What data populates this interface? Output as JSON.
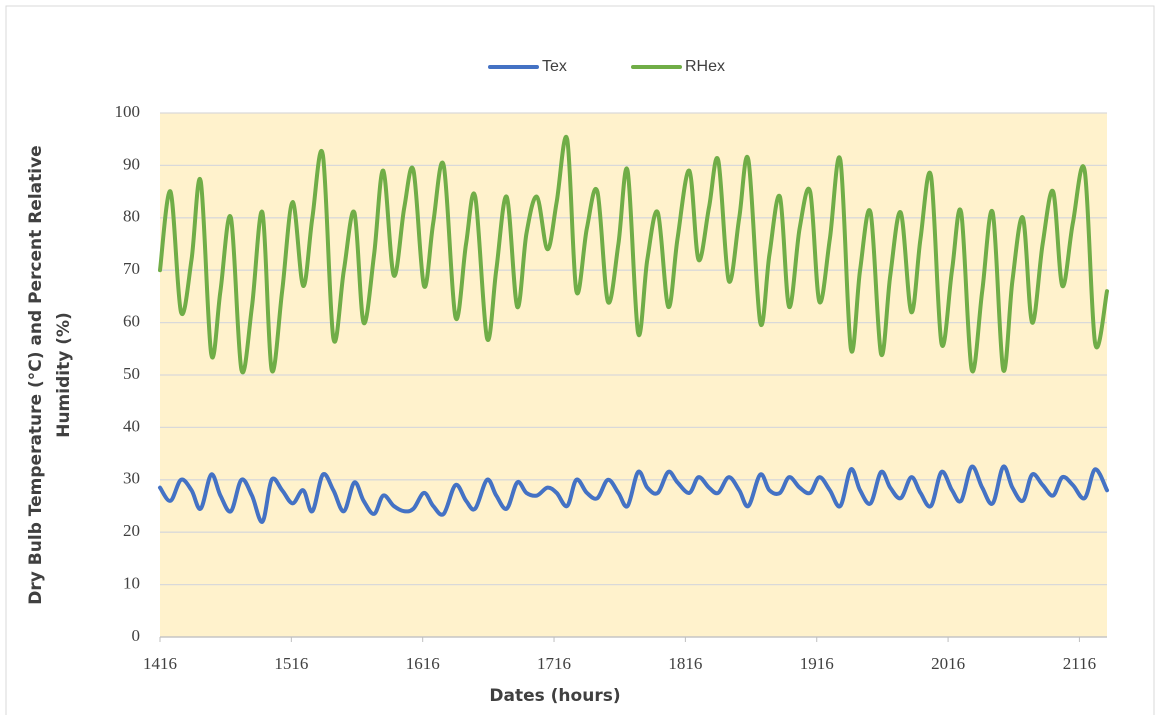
{
  "chart_data": {
    "type": "line",
    "xlabel": "Dates (hours)",
    "ylabel": [
      "Dry Bulb Temperature (°C) and Percent Relative",
      "Humidity (%)"
    ],
    "x": [
      1416,
      1424,
      1432,
      1440,
      1447,
      1455,
      1462,
      1470,
      1478,
      1486,
      1494,
      1501,
      1509,
      1517,
      1525,
      1532,
      1540,
      1548,
      1556,
      1564,
      1571,
      1579,
      1586,
      1594,
      1602,
      1609,
      1617,
      1624,
      1632,
      1641,
      1649,
      1656,
      1665,
      1672,
      1680,
      1688,
      1695,
      1703,
      1711,
      1718,
      1726,
      1733,
      1741,
      1749,
      1757,
      1765,
      1772,
      1780,
      1787,
      1795,
      1803,
      1810,
      1819,
      1826,
      1834,
      1841,
      1849,
      1857,
      1864,
      1873,
      1880,
      1888,
      1895,
      1903,
      1911,
      1918,
      1926,
      1934,
      1942,
      1949,
      1957,
      1965,
      1972,
      1980,
      1988,
      1995,
      2003,
      2011,
      2019,
      2026,
      2034,
      2042,
      2050,
      2058,
      2065,
      2073,
      2080,
      2088,
      2096,
      2103,
      2111,
      2120,
      2128,
      2137
    ],
    "series": [
      {
        "name": "Tex",
        "color": "#4472c4",
        "values": [
          28.5,
          26,
          30,
          28,
          24.5,
          31,
          27,
          24,
          30,
          27,
          22,
          30,
          28,
          25.5,
          28,
          24,
          31,
          28,
          24,
          29.5,
          26,
          23.5,
          27,
          25,
          24,
          24.5,
          27.5,
          25,
          23.5,
          29,
          26,
          24.5,
          30,
          27,
          24.5,
          29.5,
          27.5,
          27,
          28.5,
          27.5,
          25,
          30,
          27.5,
          26.5,
          30,
          27.5,
          25,
          31.5,
          28.5,
          27.5,
          31.5,
          29.5,
          27.5,
          30.5,
          28.5,
          27.5,
          30.5,
          28,
          25,
          31,
          28,
          27.5,
          30.5,
          28.5,
          27.5,
          30.5,
          28,
          25,
          32,
          28,
          25.5,
          31.5,
          28.5,
          26.5,
          30.5,
          27.5,
          25,
          31.5,
          28,
          26,
          32.5,
          28.5,
          25.5,
          32.5,
          28.5,
          26,
          31,
          29,
          27,
          30.5,
          29,
          26.5,
          32,
          28
        ]
      },
      {
        "name": "RHex",
        "color": "#70ad47",
        "values": [
          70,
          85,
          62,
          72,
          87,
          54,
          66,
          80,
          51,
          63,
          81,
          51,
          66,
          83,
          67,
          80,
          92,
          57,
          70,
          81,
          60,
          73,
          89,
          69,
          82,
          89,
          67,
          79,
          90,
          61,
          75,
          84,
          57,
          70,
          84,
          63,
          77,
          84,
          74,
          83,
          95,
          66,
          78,
          85,
          64,
          75,
          89,
          58,
          72,
          81,
          63,
          76,
          89,
          72,
          82,
          91,
          68,
          80,
          91,
          60,
          73,
          84,
          63,
          78,
          85,
          64,
          76,
          91,
          55,
          70,
          81,
          54,
          69,
          81,
          62,
          76,
          88,
          56,
          70,
          81,
          51,
          66,
          81,
          51,
          68,
          80,
          60,
          75,
          85,
          67,
          79,
          89,
          56,
          66
        ]
      }
    ],
    "xlim": [
      1416,
      2137
    ],
    "xticks": [
      1416,
      1516,
      1616,
      1716,
      1816,
      1916,
      2016,
      2116
    ],
    "ylim": [
      0,
      100
    ],
    "yticks": [
      0,
      10,
      20,
      30,
      40,
      50,
      60,
      70,
      80,
      90,
      100
    ],
    "grid": true,
    "legend": "top"
  }
}
